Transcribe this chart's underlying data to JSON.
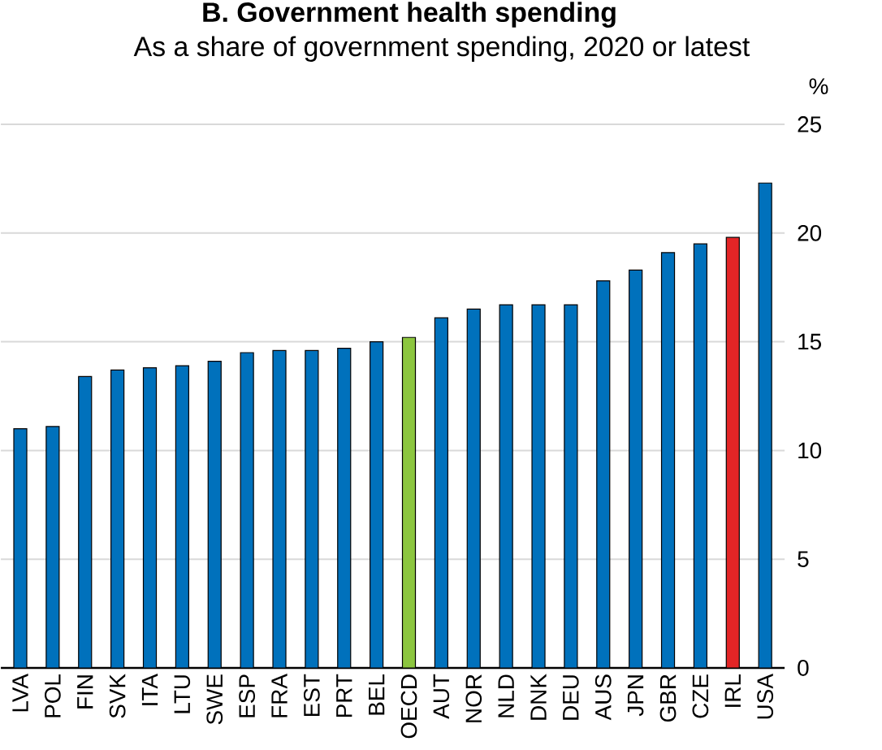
{
  "chart_data": {
    "type": "bar",
    "title": "B. Government health spending",
    "subtitle": "As a share of government spending, 2020 or latest",
    "ylabel": "%",
    "categories": [
      "LVA",
      "POL",
      "FIN",
      "SVK",
      "ITA",
      "LTU",
      "SWE",
      "ESP",
      "FRA",
      "EST",
      "PRT",
      "BEL",
      "OECD",
      "AUT",
      "NOR",
      "NLD",
      "DNK",
      "DEU",
      "AUS",
      "JPN",
      "GBR",
      "CZE",
      "IRL",
      "USA"
    ],
    "values": [
      11.0,
      11.1,
      13.4,
      13.7,
      13.8,
      13.9,
      14.1,
      14.5,
      14.6,
      14.6,
      14.7,
      15.0,
      15.2,
      16.1,
      16.5,
      16.7,
      16.7,
      16.7,
      17.8,
      18.3,
      19.1,
      19.5,
      19.8,
      22.3
    ],
    "colors": [
      "#0071bc",
      "#0071bc",
      "#0071bc",
      "#0071bc",
      "#0071bc",
      "#0071bc",
      "#0071bc",
      "#0071bc",
      "#0071bc",
      "#0071bc",
      "#0071bc",
      "#0071bc",
      "#8cc63f",
      "#0071bc",
      "#0071bc",
      "#0071bc",
      "#0071bc",
      "#0071bc",
      "#0071bc",
      "#0071bc",
      "#0071bc",
      "#0071bc",
      "#e32526",
      "#0071bc"
    ],
    "ylim": [
      0,
      25
    ],
    "yticks": [
      0,
      5,
      10,
      15,
      20,
      25
    ],
    "grid": "y"
  }
}
